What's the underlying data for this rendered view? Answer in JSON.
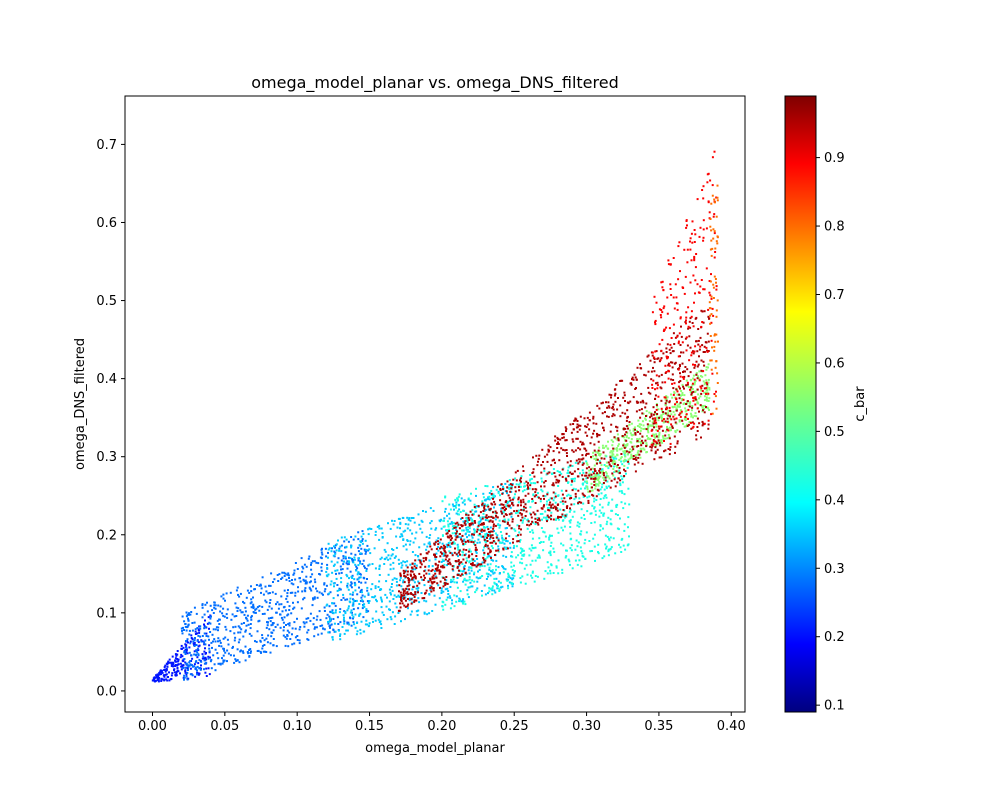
{
  "chart_data": {
    "type": "scatter",
    "title": "omega_model_planar vs. omega_DNS_filtered",
    "xlabel": "omega_model_planar",
    "ylabel": "omega_DNS_filtered",
    "xlim": [
      -0.019,
      0.4095
    ],
    "ylim": [
      -0.027,
      0.762
    ],
    "x_ticks": [
      0.0,
      0.05,
      0.1,
      0.15,
      0.2,
      0.25,
      0.3,
      0.35,
      0.4
    ],
    "x_tick_labels": [
      "0.00",
      "0.05",
      "0.10",
      "0.15",
      "0.20",
      "0.25",
      "0.30",
      "0.35",
      "0.40"
    ],
    "y_ticks": [
      0.0,
      0.1,
      0.2,
      0.3,
      0.4,
      0.5,
      0.6,
      0.7
    ],
    "y_tick_labels": [
      "0.0",
      "0.1",
      "0.2",
      "0.3",
      "0.4",
      "0.5",
      "0.6",
      "0.7"
    ],
    "grid": false,
    "colorbar": {
      "label": "c_bar",
      "colormap": "jet",
      "range": [
        0.09,
        0.99
      ],
      "ticks": [
        0.1,
        0.2,
        0.3,
        0.4,
        0.5,
        0.6,
        0.7,
        0.8,
        0.9
      ],
      "tick_labels": [
        "0.1",
        "0.2",
        "0.3",
        "0.4",
        "0.5",
        "0.6",
        "0.7",
        "0.8",
        "0.9"
      ]
    },
    "regions": [
      {
        "c_bar": 0.22,
        "x_range": [
          0.0,
          0.04
        ],
        "y_lower": [
          0.012,
          0.012
        ],
        "y_upper": [
          0.015,
          0.1
        ]
      },
      {
        "c_bar": 0.3,
        "x_range": [
          0.02,
          0.15
        ],
        "y_lower": [
          0.012,
          0.09
        ],
        "y_upper": [
          0.1,
          0.21
        ]
      },
      {
        "c_bar": 0.38,
        "x_range": [
          0.12,
          0.25
        ],
        "y_lower": [
          0.06,
          0.13
        ],
        "y_upper": [
          0.19,
          0.27
        ]
      },
      {
        "c_bar": 0.45,
        "x_range": [
          0.2,
          0.33
        ],
        "y_lower": [
          0.1,
          0.18
        ],
        "y_upper": [
          0.25,
          0.31
        ]
      },
      {
        "c_bar": 0.55,
        "x_range": [
          0.3,
          0.385
        ],
        "y_lower": [
          0.25,
          0.36
        ],
        "y_upper": [
          0.3,
          0.42
        ]
      },
      {
        "c_bar": 0.95,
        "x_range": [
          0.17,
          0.385
        ],
        "y_lower": [
          0.1,
          0.33
        ],
        "y_upper": [
          0.15,
          0.5
        ]
      },
      {
        "c_bar": 0.88,
        "x_range": [
          0.345,
          0.39
        ],
        "y_lower": [
          0.3,
          0.35
        ],
        "y_upper": [
          0.5,
          0.7
        ]
      },
      {
        "c_bar": 0.78,
        "x_range": [
          0.385,
          0.391
        ],
        "y_lower": [
          0.35,
          0.36
        ],
        "y_upper": [
          0.6,
          0.73
        ]
      }
    ]
  }
}
